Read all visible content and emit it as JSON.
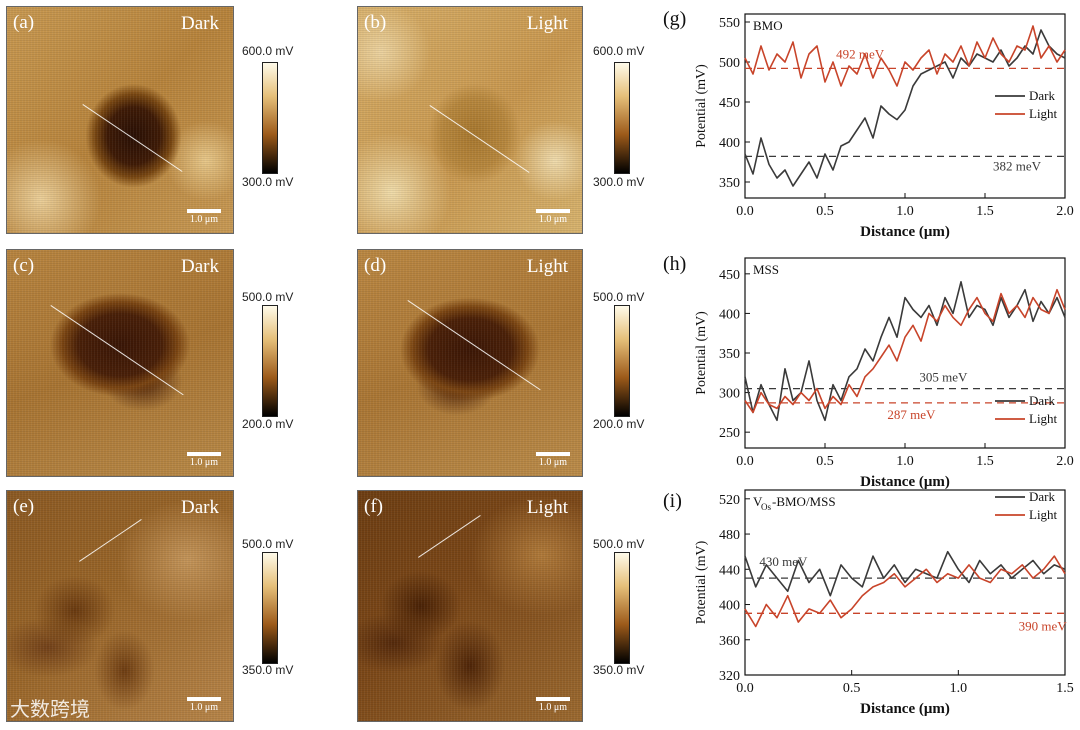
{
  "images": [
    {
      "label": "(a)",
      "condition": "Dark",
      "scale": "1.0 μm",
      "cbar_max": "600.0 mV",
      "cbar_min": "300.0 mV"
    },
    {
      "label": "(b)",
      "condition": "Light",
      "scale": "1.0 μm",
      "cbar_max": "600.0 mV",
      "cbar_min": "300.0 mV"
    },
    {
      "label": "(c)",
      "condition": "Dark",
      "scale": "1.0 μm",
      "cbar_max": "500.0 mV",
      "cbar_min": "200.0 mV"
    },
    {
      "label": "(d)",
      "condition": "Light",
      "scale": "1.0 μm",
      "cbar_max": "500.0 mV",
      "cbar_min": "200.0 mV"
    },
    {
      "label": "(e)",
      "condition": "Dark",
      "scale": "1.0 μm",
      "cbar_max": "500.0 mV",
      "cbar_min": "350.0 mV"
    },
    {
      "label": "(f)",
      "condition": "Light",
      "scale": "1.0 μm",
      "cbar_max": "500.0 mV",
      "cbar_min": "350.0 mV"
    }
  ],
  "watermark": "大数跨境",
  "colors": {
    "dark": "#3a3a3a",
    "light": "#c8442a"
  },
  "chart_data": [
    {
      "type": "line",
      "panel": "(g)",
      "title": "BMO",
      "xlabel": "Distance (μm)",
      "ylabel": "Potential (mV)",
      "xlim": [
        0,
        2.0
      ],
      "ylim": [
        330,
        560
      ],
      "xticks": [
        0.0,
        0.5,
        1.0,
        1.5,
        2.0
      ],
      "xtick_labels": [
        "0.0",
        "0.5",
        "1.0",
        "1.5",
        "2.0"
      ],
      "yticks": [
        350,
        400,
        450,
        500,
        550
      ],
      "legend": [
        "Dark",
        "Light"
      ],
      "hlines": [
        {
          "y": 492,
          "label": "492 meV",
          "series": "Light"
        },
        {
          "y": 382,
          "label": "382 meV",
          "series": "Dark"
        }
      ],
      "series": [
        {
          "name": "Dark",
          "x": [
            0,
            0.05,
            0.1,
            0.15,
            0.2,
            0.25,
            0.3,
            0.35,
            0.4,
            0.45,
            0.5,
            0.55,
            0.6,
            0.65,
            0.7,
            0.75,
            0.8,
            0.85,
            0.9,
            0.95,
            1.0,
            1.05,
            1.1,
            1.15,
            1.2,
            1.25,
            1.3,
            1.35,
            1.4,
            1.45,
            1.5,
            1.55,
            1.6,
            1.65,
            1.7,
            1.75,
            1.8,
            1.85,
            1.9,
            1.95,
            2.0
          ],
          "y": [
            385,
            360,
            405,
            372,
            355,
            365,
            345,
            360,
            375,
            355,
            385,
            365,
            395,
            400,
            415,
            430,
            405,
            445,
            435,
            428,
            440,
            470,
            485,
            490,
            495,
            500,
            480,
            505,
            495,
            510,
            505,
            500,
            515,
            495,
            505,
            520,
            510,
            540,
            520,
            510,
            505
          ]
        },
        {
          "name": "Light",
          "x": [
            0,
            0.05,
            0.1,
            0.15,
            0.2,
            0.25,
            0.3,
            0.35,
            0.4,
            0.45,
            0.5,
            0.55,
            0.6,
            0.65,
            0.7,
            0.75,
            0.8,
            0.85,
            0.9,
            0.95,
            1.0,
            1.05,
            1.1,
            1.15,
            1.2,
            1.25,
            1.3,
            1.35,
            1.4,
            1.45,
            1.5,
            1.55,
            1.6,
            1.65,
            1.7,
            1.75,
            1.8,
            1.85,
            1.9,
            1.95,
            2.0
          ],
          "y": [
            505,
            485,
            520,
            490,
            510,
            500,
            525,
            480,
            510,
            520,
            475,
            500,
            470,
            495,
            485,
            510,
            480,
            505,
            490,
            470,
            500,
            490,
            505,
            515,
            485,
            510,
            500,
            520,
            495,
            525,
            505,
            530,
            510,
            500,
            520,
            515,
            545,
            505,
            520,
            500,
            515
          ]
        }
      ]
    },
    {
      "type": "line",
      "panel": "(h)",
      "title": "MSS",
      "xlabel": "Distance (μm)",
      "ylabel": "Potential (mV)",
      "xlim": [
        0,
        2.0
      ],
      "ylim": [
        230,
        470
      ],
      "xticks": [
        0.0,
        0.5,
        1.0,
        1.5,
        2.0
      ],
      "xtick_labels": [
        "0.0",
        "0.5",
        "1.0",
        "1.5",
        "2.0"
      ],
      "yticks": [
        250,
        300,
        350,
        400,
        450
      ],
      "legend": [
        "Dark",
        "Light"
      ],
      "hlines": [
        {
          "y": 305,
          "label": "305 meV",
          "series": "Dark"
        },
        {
          "y": 287,
          "label": "287 meV",
          "series": "Light"
        }
      ],
      "series": [
        {
          "name": "Dark",
          "x": [
            0,
            0.05,
            0.1,
            0.15,
            0.2,
            0.25,
            0.3,
            0.35,
            0.4,
            0.45,
            0.5,
            0.55,
            0.6,
            0.65,
            0.7,
            0.75,
            0.8,
            0.85,
            0.9,
            0.95,
            1.0,
            1.05,
            1.1,
            1.15,
            1.2,
            1.25,
            1.3,
            1.35,
            1.4,
            1.45,
            1.5,
            1.55,
            1.6,
            1.65,
            1.7,
            1.75,
            1.8,
            1.85,
            1.9,
            1.95,
            2.0
          ],
          "y": [
            320,
            275,
            310,
            285,
            265,
            330,
            290,
            300,
            340,
            290,
            265,
            310,
            290,
            320,
            330,
            355,
            340,
            370,
            395,
            370,
            420,
            405,
            395,
            410,
            385,
            420,
            400,
            440,
            395,
            410,
            405,
            385,
            420,
            395,
            410,
            430,
            390,
            415,
            400,
            420,
            395
          ]
        },
        {
          "name": "Light",
          "x": [
            0,
            0.05,
            0.1,
            0.15,
            0.2,
            0.25,
            0.3,
            0.35,
            0.4,
            0.45,
            0.5,
            0.55,
            0.6,
            0.65,
            0.7,
            0.75,
            0.8,
            0.85,
            0.9,
            0.95,
            1.0,
            1.05,
            1.1,
            1.15,
            1.2,
            1.25,
            1.3,
            1.35,
            1.4,
            1.45,
            1.5,
            1.55,
            1.6,
            1.65,
            1.7,
            1.75,
            1.8,
            1.85,
            1.9,
            1.95,
            2.0
          ],
          "y": [
            290,
            275,
            300,
            285,
            280,
            295,
            285,
            300,
            290,
            305,
            280,
            295,
            285,
            310,
            295,
            320,
            330,
            345,
            360,
            340,
            370,
            385,
            365,
            400,
            390,
            410,
            395,
            385,
            405,
            420,
            400,
            390,
            425,
            400,
            410,
            395,
            420,
            405,
            400,
            430,
            405
          ]
        }
      ]
    },
    {
      "type": "line",
      "panel": "(i)",
      "title": "V_Os-BMO/MSS",
      "title_main": "V",
      "title_sub": "Os",
      "title_rest": "-BMO/MSS",
      "xlabel": "Distance (μm)",
      "ylabel": "Potential (mV)",
      "xlim": [
        0,
        1.5
      ],
      "ylim": [
        320,
        530
      ],
      "xticks": [
        0.0,
        0.5,
        1.0,
        1.5
      ],
      "xtick_labels": [
        "0.0",
        "0.5",
        "1.0",
        "1.5"
      ],
      "yticks": [
        320,
        360,
        400,
        440,
        480,
        520
      ],
      "legend": [
        "Dark",
        "Light"
      ],
      "hlines": [
        {
          "y": 430,
          "label": "430 meV",
          "series": "Dark"
        },
        {
          "y": 390,
          "label": "390 meV",
          "series": "Light"
        }
      ],
      "series": [
        {
          "name": "Dark",
          "x": [
            0,
            0.05,
            0.1,
            0.15,
            0.2,
            0.25,
            0.3,
            0.35,
            0.4,
            0.45,
            0.5,
            0.55,
            0.6,
            0.65,
            0.7,
            0.75,
            0.8,
            0.85,
            0.9,
            0.95,
            1.0,
            1.05,
            1.1,
            1.15,
            1.2,
            1.25,
            1.3,
            1.35,
            1.4,
            1.45,
            1.5
          ],
          "y": [
            455,
            420,
            445,
            430,
            415,
            450,
            425,
            440,
            410,
            445,
            430,
            420,
            455,
            430,
            445,
            425,
            440,
            435,
            430,
            460,
            440,
            425,
            450,
            435,
            445,
            430,
            440,
            450,
            435,
            445,
            440
          ]
        },
        {
          "name": "Light",
          "x": [
            0,
            0.05,
            0.1,
            0.15,
            0.2,
            0.25,
            0.3,
            0.35,
            0.4,
            0.45,
            0.5,
            0.55,
            0.6,
            0.65,
            0.7,
            0.75,
            0.8,
            0.85,
            0.9,
            0.95,
            1.0,
            1.05,
            1.1,
            1.15,
            1.2,
            1.25,
            1.3,
            1.35,
            1.4,
            1.45,
            1.5
          ],
          "y": [
            395,
            375,
            400,
            385,
            410,
            380,
            395,
            390,
            405,
            385,
            395,
            410,
            420,
            425,
            435,
            420,
            430,
            440,
            425,
            435,
            430,
            445,
            430,
            425,
            440,
            435,
            445,
            430,
            440,
            455,
            435
          ]
        }
      ]
    }
  ]
}
